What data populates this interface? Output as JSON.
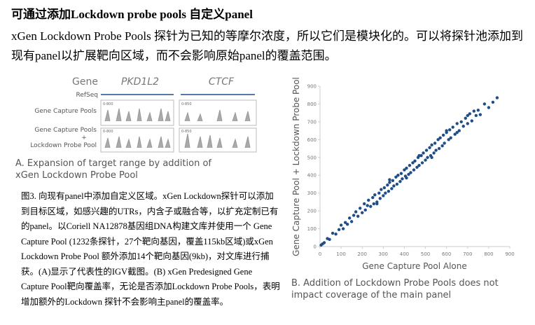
{
  "title": "可通过添加Lockdown probe pools 自定义panel",
  "intro": "xGen Lockdown Probe Pools 探针为已知的等摩尔浓度，所以它们是模块化的。可以将探针池添加到现有panel以扩展靶向区域，而不会影响原始panel的覆盖范围。",
  "figure_a": {
    "gene_label": "Gene",
    "genes": [
      "PKD1L2",
      "CTCF"
    ],
    "refseq_label": "RefSeq",
    "track1_label": "Gene Capture Pools",
    "track2_label": [
      "Gene Capture Pools",
      "+",
      "Lockdown Probe Pool"
    ],
    "scale_labels": [
      "0-800",
      "0-850",
      "0-800",
      "0-850"
    ],
    "caption": "A. Expansion of target range by addition of xGen Lockdown Probe Pool"
  },
  "figure_caption": "图3. 向现有panel中添加自定义区域。xGen Lockdown探针可以添加到目标区域，如感兴趣的UTRs，内含子或融合等，以扩充定制已有的panel。以Coriell NA12878基因组DNA构建文库并使用一个 Gene Capture Pool (1232条探针，27个靶向基因，覆盖115kb区域)或xGen Lockdown Probe Pool 额外添加14个靶向基因(9kb)，对文库进行捕获。(A)显示了代表性的IGV截图。(B) xGen Predesigned Gene Capture Pool靶向覆盖率，无论是否添加Lockdown Probe Pools，表明增加额外的Lockdown 探针不会影响主panel的覆盖率。",
  "chart_data": {
    "type": "scatter",
    "xlabel": "Gene Capture Pool Alone",
    "ylabel": "Gene Capture Pool + Lockdown Probe Pool",
    "caption": "B. Addition of Lockdown Probe Pools does not impact coverage of the main panel",
    "color": "#1f4e87",
    "xlim": [
      0,
      900
    ],
    "ylim": [
      0,
      900
    ],
    "xticks": [
      0,
      100,
      200,
      300,
      400,
      500,
      600,
      700,
      800,
      900
    ],
    "yticks": [
      0,
      100,
      200,
      300,
      400,
      500,
      600,
      700,
      800,
      900
    ],
    "x": [
      5,
      12,
      20,
      35,
      45,
      60,
      75,
      90,
      100,
      110,
      120,
      130,
      140,
      150,
      160,
      170,
      180,
      190,
      200,
      210,
      215,
      225,
      230,
      240,
      250,
      255,
      260,
      270,
      280,
      285,
      290,
      300,
      305,
      310,
      320,
      325,
      330,
      340,
      345,
      350,
      360,
      365,
      370,
      380,
      385,
      390,
      400,
      405,
      410,
      420,
      425,
      430,
      440,
      445,
      450,
      460,
      465,
      470,
      480,
      485,
      490,
      500,
      505,
      510,
      520,
      525,
      530,
      540,
      545,
      550,
      560,
      565,
      570,
      580,
      585,
      590,
      600,
      610,
      615,
      620,
      630,
      640,
      650,
      660,
      670,
      680,
      690,
      700,
      710,
      720,
      730,
      740,
      750,
      760,
      780,
      800,
      820,
      840,
      270,
      330,
      410,
      470,
      530,
      600,
      650,
      700
    ],
    "values": [
      8,
      15,
      22,
      45,
      40,
      75,
      70,
      95,
      120,
      100,
      135,
      125,
      160,
      140,
      175,
      195,
      170,
      215,
      190,
      240,
      205,
      230,
      260,
      225,
      275,
      240,
      290,
      250,
      300,
      270,
      320,
      285,
      330,
      300,
      345,
      310,
      360,
      325,
      370,
      340,
      390,
      350,
      400,
      365,
      410,
      380,
      430,
      395,
      440,
      405,
      455,
      415,
      470,
      430,
      480,
      445,
      500,
      455,
      510,
      470,
      525,
      485,
      540,
      500,
      555,
      510,
      570,
      525,
      580,
      540,
      600,
      550,
      610,
      565,
      625,
      580,
      640,
      600,
      655,
      610,
      670,
      630,
      690,
      650,
      700,
      675,
      720,
      690,
      745,
      705,
      760,
      735,
      765,
      740,
      800,
      780,
      810,
      835,
      240,
      375,
      385,
      510,
      500,
      650,
      640,
      735
    ]
  }
}
